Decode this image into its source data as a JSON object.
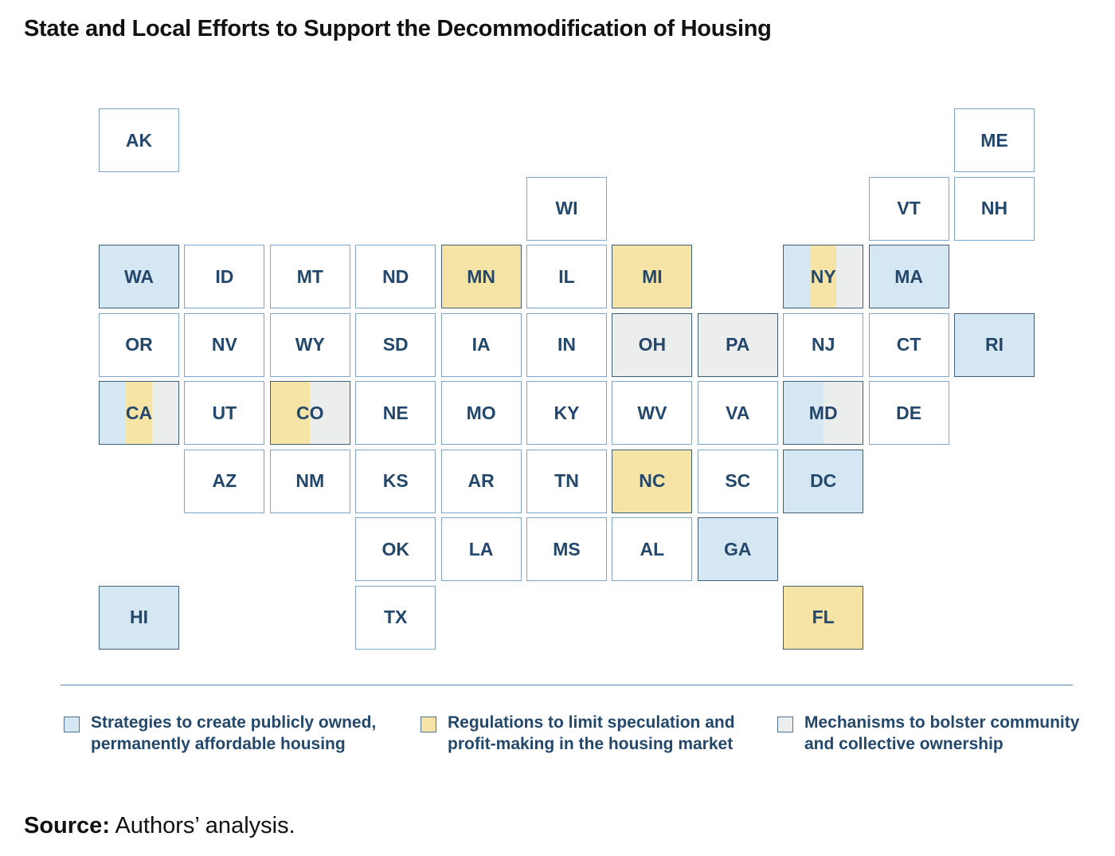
{
  "title": "State and Local Efforts to Support the Decommodification of Housing",
  "colors": {
    "public": "#d5e7f3",
    "regulation": "#f6e4a6",
    "community": "#eceeee",
    "text": "#24486b"
  },
  "legend": [
    {
      "key": "public",
      "label": "Strategies to create publicly owned,\npermanently affordable housing"
    },
    {
      "key": "regulation",
      "label": "Regulations to limit speculation and\nprofit-making in the housing market"
    },
    {
      "key": "community",
      "label": "Mechanisms to bolster community\nand collective ownership"
    }
  ],
  "states": [
    {
      "abbr": "AK",
      "col": 0,
      "row": 0,
      "cats": []
    },
    {
      "abbr": "ME",
      "col": 10,
      "row": 0,
      "cats": []
    },
    {
      "abbr": "WI",
      "col": 5,
      "row": 1,
      "cats": []
    },
    {
      "abbr": "VT",
      "col": 9,
      "row": 1,
      "cats": []
    },
    {
      "abbr": "NH",
      "col": 10,
      "row": 1,
      "cats": []
    },
    {
      "abbr": "WA",
      "col": 0,
      "row": 2,
      "cats": [
        "public"
      ]
    },
    {
      "abbr": "ID",
      "col": 1,
      "row": 2,
      "cats": []
    },
    {
      "abbr": "MT",
      "col": 2,
      "row": 2,
      "cats": []
    },
    {
      "abbr": "ND",
      "col": 3,
      "row": 2,
      "cats": []
    },
    {
      "abbr": "MN",
      "col": 4,
      "row": 2,
      "cats": [
        "regulation"
      ]
    },
    {
      "abbr": "IL",
      "col": 5,
      "row": 2,
      "cats": []
    },
    {
      "abbr": "MI",
      "col": 6,
      "row": 2,
      "cats": [
        "regulation"
      ]
    },
    {
      "abbr": "NY",
      "col": 8,
      "row": 2,
      "cats": [
        "public",
        "regulation",
        "community"
      ]
    },
    {
      "abbr": "MA",
      "col": 9,
      "row": 2,
      "cats": [
        "public"
      ]
    },
    {
      "abbr": "OR",
      "col": 0,
      "row": 3,
      "cats": []
    },
    {
      "abbr": "NV",
      "col": 1,
      "row": 3,
      "cats": []
    },
    {
      "abbr": "WY",
      "col": 2,
      "row": 3,
      "cats": []
    },
    {
      "abbr": "SD",
      "col": 3,
      "row": 3,
      "cats": []
    },
    {
      "abbr": "IA",
      "col": 4,
      "row": 3,
      "cats": []
    },
    {
      "abbr": "IN",
      "col": 5,
      "row": 3,
      "cats": []
    },
    {
      "abbr": "OH",
      "col": 6,
      "row": 3,
      "cats": [
        "community"
      ]
    },
    {
      "abbr": "PA",
      "col": 7,
      "row": 3,
      "cats": [
        "community"
      ]
    },
    {
      "abbr": "NJ",
      "col": 8,
      "row": 3,
      "cats": []
    },
    {
      "abbr": "CT",
      "col": 9,
      "row": 3,
      "cats": []
    },
    {
      "abbr": "RI",
      "col": 10,
      "row": 3,
      "cats": [
        "public"
      ]
    },
    {
      "abbr": "CA",
      "col": 0,
      "row": 4,
      "cats": [
        "public",
        "regulation",
        "community"
      ]
    },
    {
      "abbr": "UT",
      "col": 1,
      "row": 4,
      "cats": []
    },
    {
      "abbr": "CO",
      "col": 2,
      "row": 4,
      "cats": [
        "regulation",
        "community"
      ]
    },
    {
      "abbr": "NE",
      "col": 3,
      "row": 4,
      "cats": []
    },
    {
      "abbr": "MO",
      "col": 4,
      "row": 4,
      "cats": []
    },
    {
      "abbr": "KY",
      "col": 5,
      "row": 4,
      "cats": []
    },
    {
      "abbr": "WV",
      "col": 6,
      "row": 4,
      "cats": []
    },
    {
      "abbr": "VA",
      "col": 7,
      "row": 4,
      "cats": []
    },
    {
      "abbr": "MD",
      "col": 8,
      "row": 4,
      "cats": [
        "public",
        "community"
      ]
    },
    {
      "abbr": "DE",
      "col": 9,
      "row": 4,
      "cats": []
    },
    {
      "abbr": "AZ",
      "col": 1,
      "row": 5,
      "cats": []
    },
    {
      "abbr": "NM",
      "col": 2,
      "row": 5,
      "cats": []
    },
    {
      "abbr": "KS",
      "col": 3,
      "row": 5,
      "cats": []
    },
    {
      "abbr": "AR",
      "col": 4,
      "row": 5,
      "cats": []
    },
    {
      "abbr": "TN",
      "col": 5,
      "row": 5,
      "cats": []
    },
    {
      "abbr": "NC",
      "col": 6,
      "row": 5,
      "cats": [
        "regulation"
      ]
    },
    {
      "abbr": "SC",
      "col": 7,
      "row": 5,
      "cats": []
    },
    {
      "abbr": "DC",
      "col": 8,
      "row": 5,
      "cats": [
        "public"
      ]
    },
    {
      "abbr": "OK",
      "col": 3,
      "row": 6,
      "cats": []
    },
    {
      "abbr": "LA",
      "col": 4,
      "row": 6,
      "cats": []
    },
    {
      "abbr": "MS",
      "col": 5,
      "row": 6,
      "cats": []
    },
    {
      "abbr": "AL",
      "col": 6,
      "row": 6,
      "cats": []
    },
    {
      "abbr": "GA",
      "col": 7,
      "row": 6,
      "cats": [
        "public"
      ]
    },
    {
      "abbr": "HI",
      "col": 0,
      "row": 7,
      "cats": [
        "public"
      ]
    },
    {
      "abbr": "TX",
      "col": 3,
      "row": 7,
      "cats": []
    },
    {
      "abbr": "FL",
      "col": 8,
      "row": 7,
      "cats": [
        "regulation"
      ]
    }
  ],
  "source": {
    "label": "Source:",
    "text": " Authors’ analysis."
  }
}
